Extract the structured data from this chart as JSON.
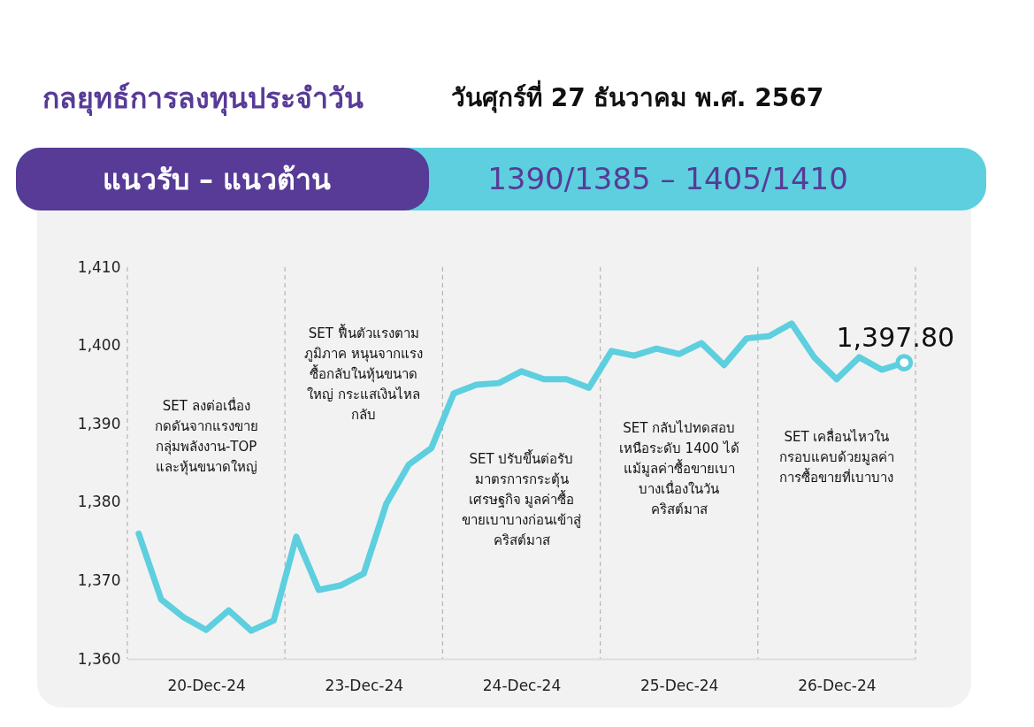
{
  "chart_data": {
    "type": "line",
    "title": "กลยุทธ์การลงทุนประจำวัน",
    "subtitle": "วันศุกร์ที่ 27 ธันวาคม พ.ศ. 2567",
    "categories": [
      null,
      null,
      null,
      "20-Dec-24",
      null,
      null,
      null,
      null,
      null,
      null,
      "23-Dec-24",
      null,
      null,
      null,
      null,
      null,
      null,
      "24-Dec-24",
      null,
      null,
      null,
      null,
      null,
      null,
      "25-Dec-24",
      null,
      null,
      null,
      null,
      null,
      null,
      "26-Dec-24",
      null,
      null,
      null
    ],
    "series": [
      {
        "color": "#5dcfdf",
        "values": [
          1376.0,
          1367.6,
          1365.3,
          1363.7,
          1366.2,
          1363.6,
          1364.9,
          1375.6,
          1368.8,
          1369.4,
          1370.9,
          1379.8,
          1384.8,
          1386.9,
          1393.9,
          1395.0,
          1395.2,
          1396.7,
          1395.7,
          1395.7,
          1394.6,
          1399.3,
          1398.7,
          1399.6,
          1398.9,
          1400.3,
          1397.5,
          1400.9,
          1401.2,
          1402.8,
          1398.5,
          1395.7,
          1398.5,
          1396.9,
          1397.8
        ]
      }
    ],
    "ylim": [
      1360,
      1410
    ],
    "yticks": [
      {
        "value": 1360,
        "label": "1,360"
      },
      {
        "value": 1370,
        "label": "1,370"
      },
      {
        "value": 1380,
        "label": "1,380"
      },
      {
        "value": 1390,
        "label": "1,390"
      },
      {
        "value": 1400,
        "label": "1,400"
      },
      {
        "value": 1410,
        "label": "1,410"
      }
    ],
    "grid": "x",
    "marker": "none",
    "line_style": "solid",
    "annotations": [
      "แนวรับ – แนวต้าน",
      "1390/1385 – 1405/1410",
      "SET ลงต่อเนื่อง\nกดดันจากแรงขาย\nกลุ่มพลังงาน-TOP\nและหุ้นขนาดใหญ่",
      "SET ฟื้นตัวแรงตาม\nภูมิภาค หนุนจากแรง\nซื้อกลับในหุ้นขนาด\nใหญ่ กระแสเงินไหล\nกลับ",
      "SET ปรับขึ้นต่อรับ\nมาตรการกระตุ้น\nเศรษฐกิจ มูลค่าซื้อ\nขายเบาบางก่อนเข้าสู่\nคริสต์มาส",
      "SET กลับไปทดสอบ\nเหนือระดับ 1400 ได้\nแม้มูลค่าซื้อขายเบา\nบางเนื่องในวัน\nคริสต์มาส",
      "SET เคลื่อนไหวใน\nกรอบแคบด้วยมูลค่า\nการซื้อขายที่เบาบาง",
      {
        "text": "1,397.80",
        "y": 1397.8
      }
    ]
  }
}
